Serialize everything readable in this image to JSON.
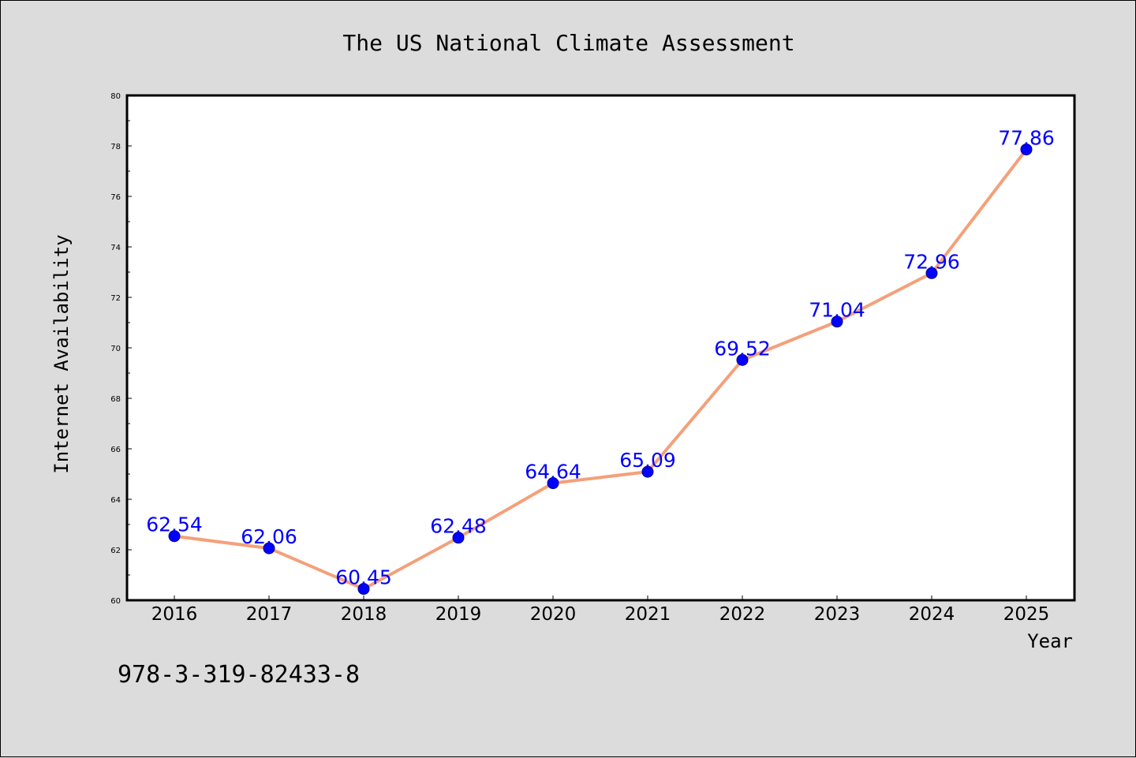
{
  "isbn": "978-3-319-82433-8",
  "chart_data": {
    "type": "line",
    "title": "The US National Climate Assessment",
    "xlabel": "Year",
    "ylabel": "Internet Availability",
    "categories": [
      "2016",
      "2017",
      "2018",
      "2019",
      "2020",
      "2021",
      "2022",
      "2023",
      "2024",
      "2025"
    ],
    "values": [
      62.54,
      62.06,
      60.45,
      62.48,
      64.64,
      65.09,
      69.52,
      71.04,
      72.96,
      77.86
    ],
    "data_labels": [
      "62.54",
      "62.06",
      "60.45",
      "62.48",
      "64.64",
      "65.09",
      "69.52",
      "71.04",
      "72.96",
      "77.86"
    ],
    "ylim": [
      60,
      80
    ],
    "yticks": [
      60,
      62,
      64,
      66,
      68,
      70,
      72,
      74,
      76,
      78,
      80
    ],
    "grid": false,
    "line_color": "#f4a07a",
    "marker_color": "#0000ff",
    "label_color": "#0000ff",
    "background_color": "#dcdcdc",
    "plot_background_color": "#ffffff"
  }
}
